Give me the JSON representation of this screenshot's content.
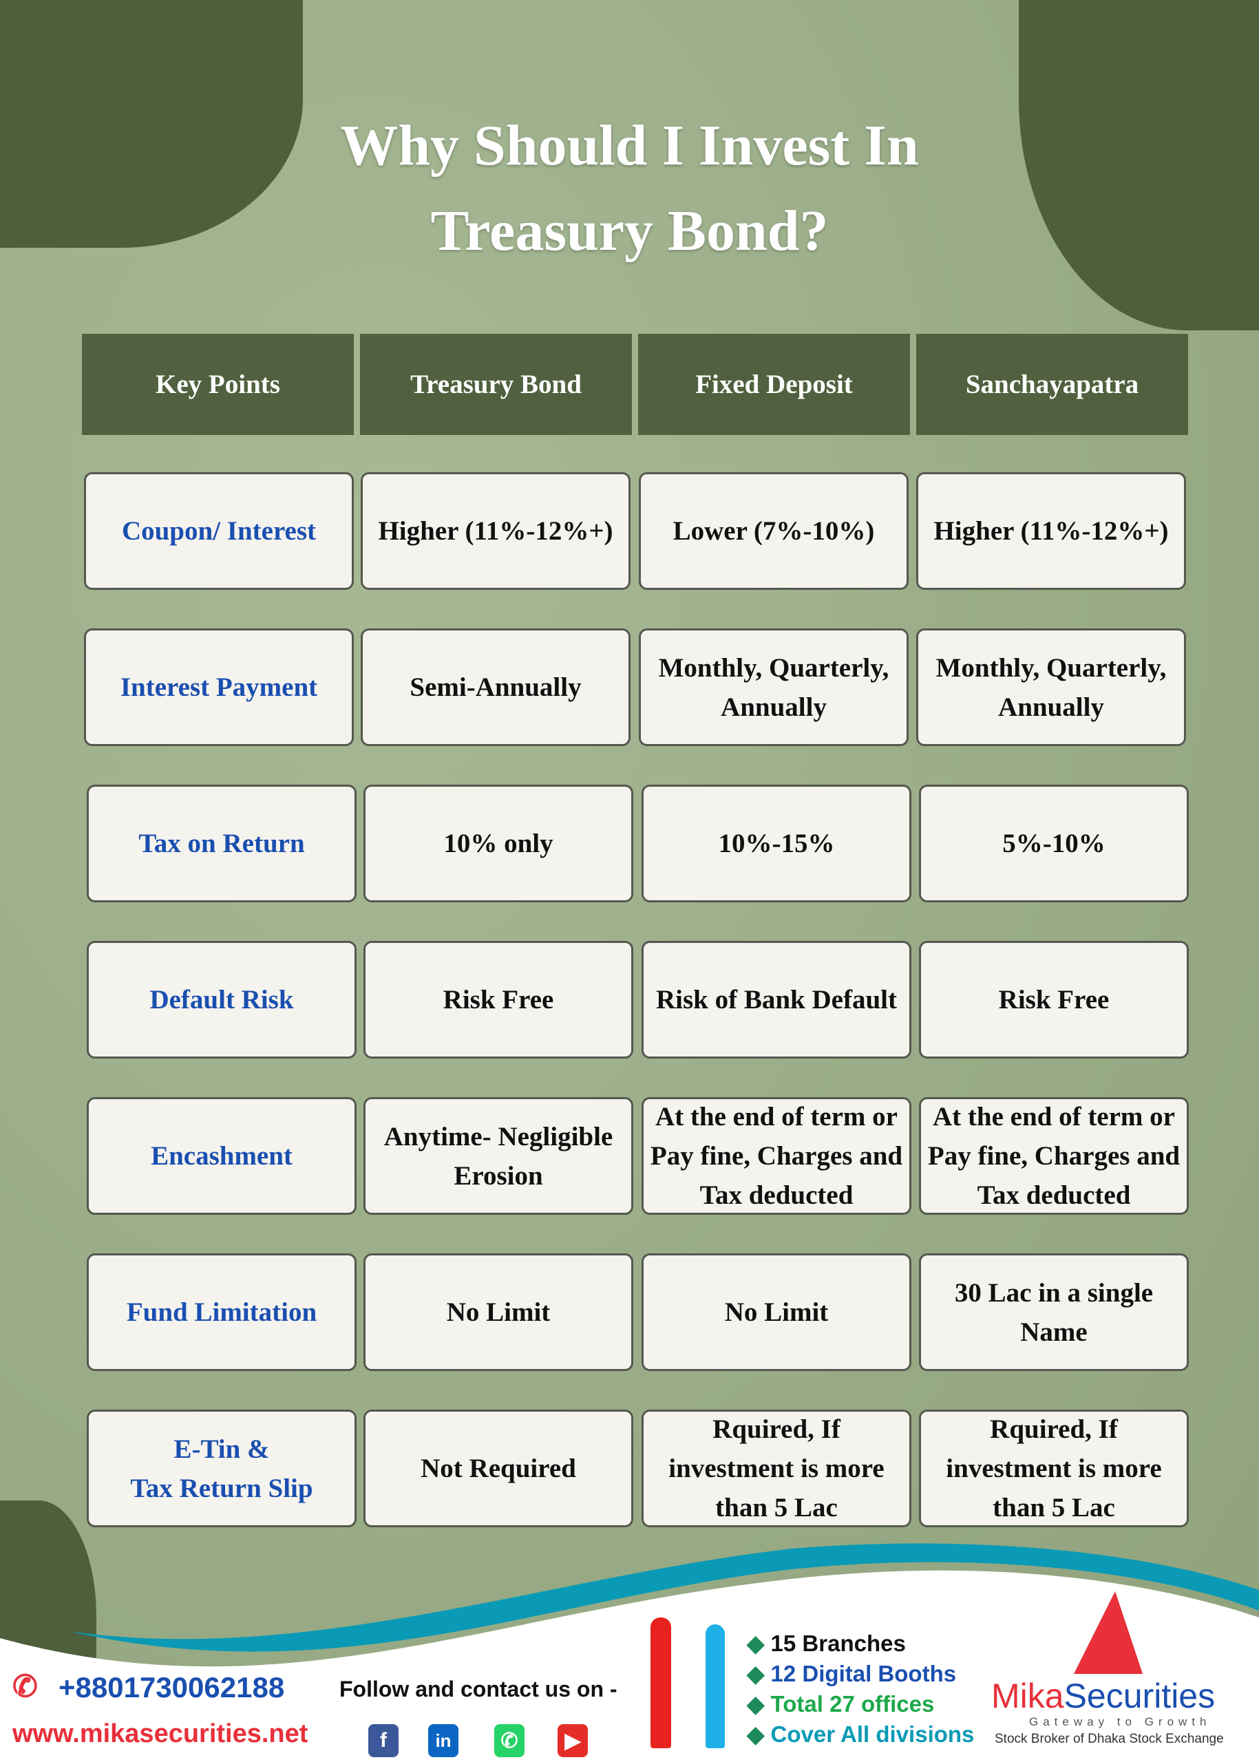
{
  "title": {
    "line1": "Why Should I Invest In",
    "line2": "Treasury Bond?"
  },
  "table": {
    "headers": [
      "Key Points",
      "Treasury Bond",
      "Fixed Deposit",
      "Sanchayapatra"
    ],
    "rows": [
      [
        "Coupon/ Interest",
        "Higher (11%-12%+)",
        "Lower (7%-10%)",
        "Higher (11%-12%+)"
      ],
      [
        "Interest Payment",
        "Semi-Annually",
        "Monthly, Quarterly,\nAnnually",
        "Monthly, Quarterly,\nAnnually"
      ],
      [
        "Tax on Return",
        "10% only",
        "10%-15%",
        "5%-10%"
      ],
      [
        "Default Risk",
        "Risk Free",
        "Risk of Bank Default",
        "Risk Free"
      ],
      [
        "Encashment",
        "Anytime- Negligible\nErosion",
        "At the end of term or\nPay fine, Charges and\nTax deducted",
        "At the end of term or\nPay fine, Charges and\nTax deducted"
      ],
      [
        "Fund Limitation",
        "No Limit",
        "No Limit",
        "30 Lac in a single\nName"
      ],
      [
        "E-Tin &\nTax Return Slip",
        "Not Required",
        "Rquired, If\ninvestment is more\nthan 5 Lac",
        "Rquired, If\ninvestment is more\nthan 5 Lac"
      ]
    ]
  },
  "footer": {
    "phone": "+8801730062188",
    "website": "www.mikasecurities.net",
    "follow": "Follow and contact us on -",
    "social": [
      "facebook-icon",
      "linkedin-icon",
      "whatsapp-icon",
      "youtube-icon"
    ],
    "stats": [
      "15 Branches",
      "12 Digital Booths",
      "Total 27 offices",
      "Cover All divisions"
    ],
    "brand": {
      "mika": "Mika",
      "securities": "Securities",
      "tagline": "Gateway to Growth",
      "subtitle": "Stock Broker of Dhaka Stock Exchange"
    },
    "colors": {
      "teal": "#0a9ab5",
      "red": "#e8303a",
      "blue": "#1a4fb0",
      "green": "#1da84a"
    }
  }
}
